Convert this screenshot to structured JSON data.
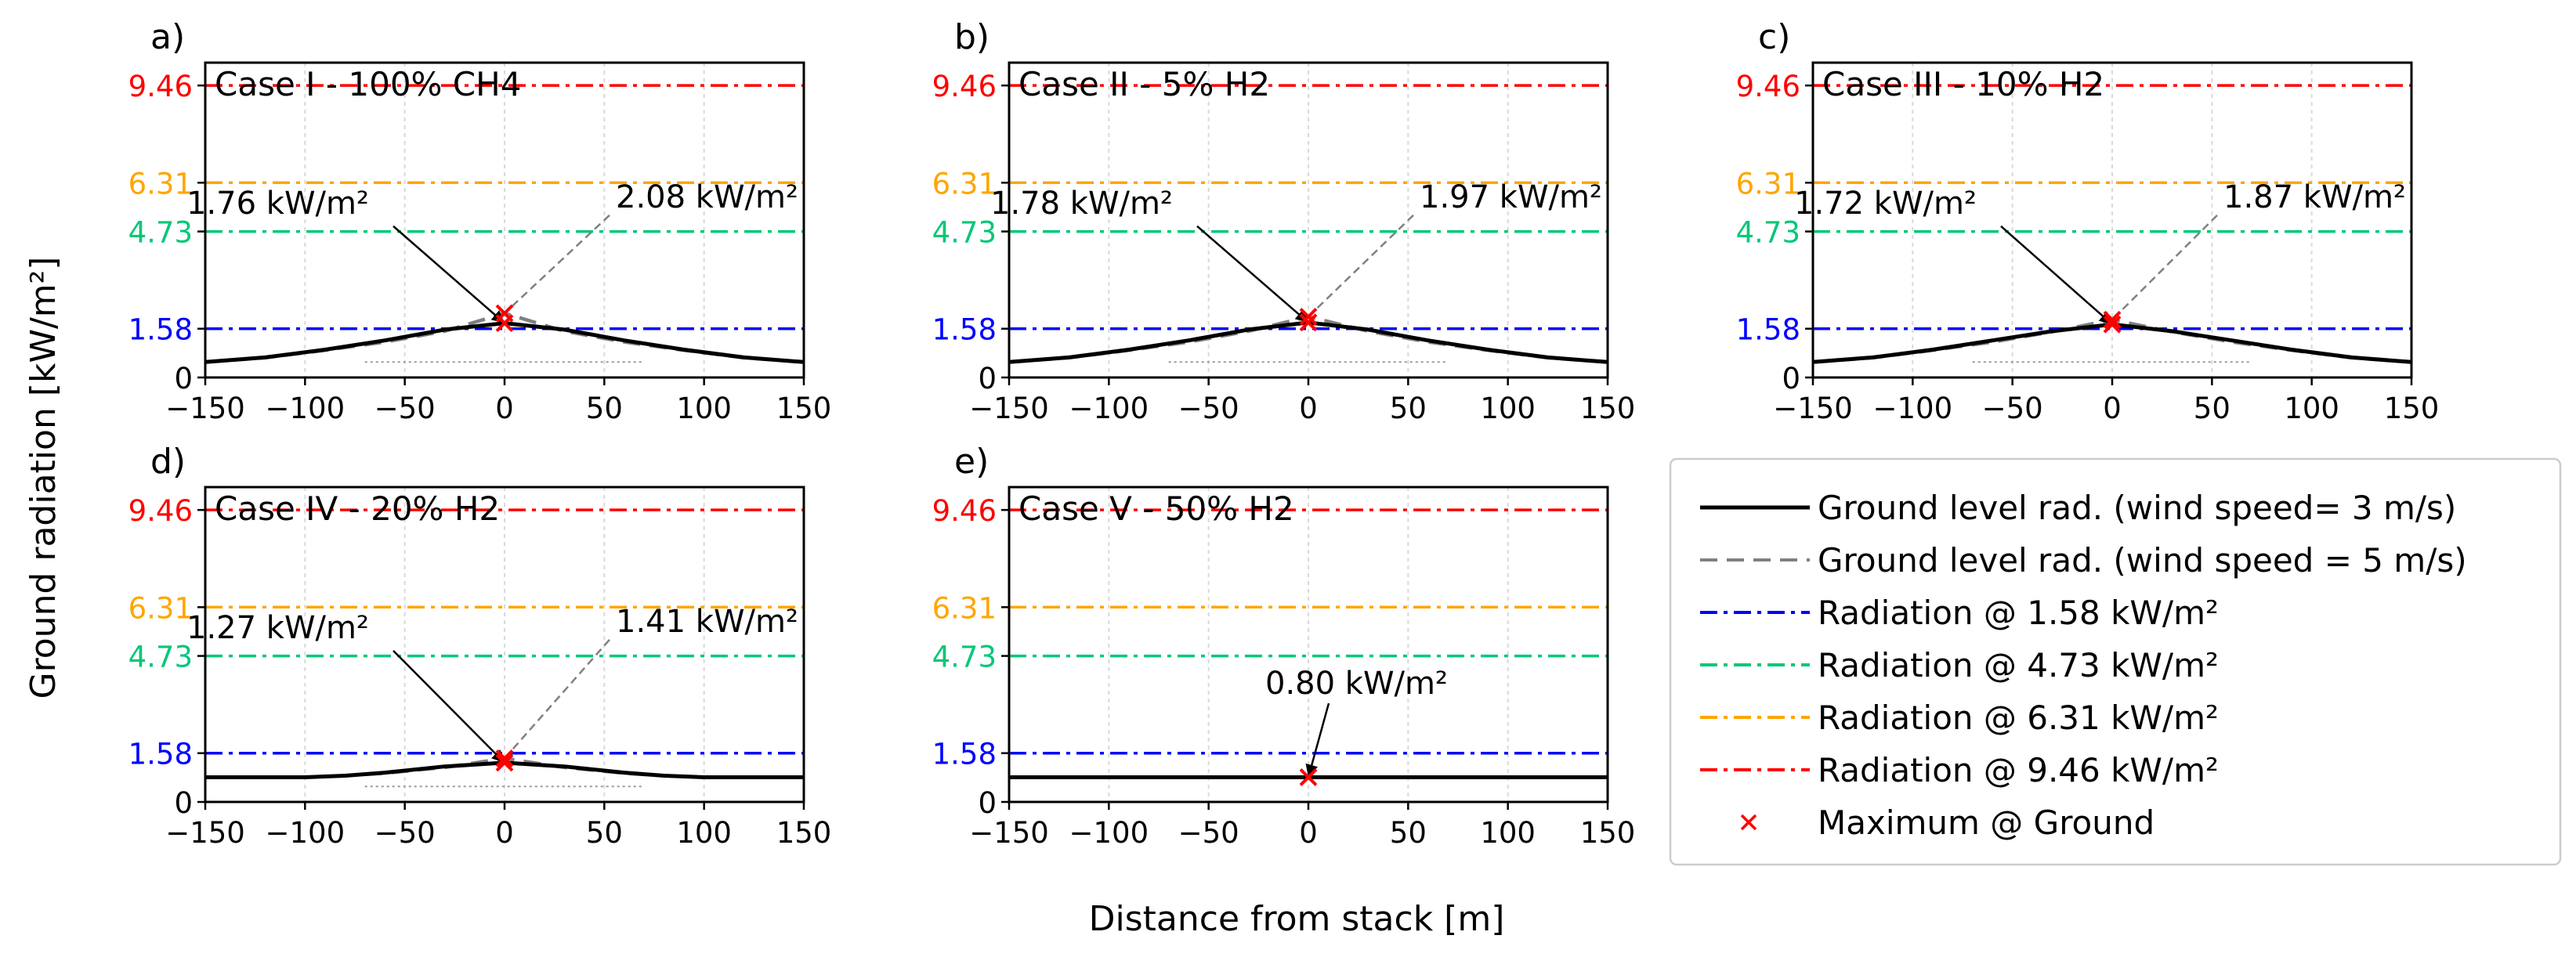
{
  "figure": {
    "ylabel": "Ground radiation [kW/m²]",
    "xlabel": "Distance from stack [m]"
  },
  "colors": {
    "r158": "#0000ff",
    "r473": "#00c878",
    "r631": "#ffa500",
    "r946": "#ff0000",
    "wind3": "#000000",
    "wind5": "#808080",
    "marker": "#ff0000",
    "grid": "#d9d9d9"
  },
  "legend": {
    "items": [
      {
        "label": "Ground level rad. (wind speed= 3 m/s)",
        "style": "solid",
        "color": "#000000"
      },
      {
        "label": "Ground level rad. (wind speed = 5 m/s)",
        "style": "dashed",
        "color": "#808080"
      },
      {
        "label": "Radiation @ 1.58 kW/m²",
        "style": "dashdot",
        "color": "#0000ff"
      },
      {
        "label": "Radiation @ 4.73 kW/m²",
        "style": "dashdot",
        "color": "#00c878"
      },
      {
        "label": "Radiation @ 6.31 kW/m²",
        "style": "dashdot",
        "color": "#ffa500"
      },
      {
        "label": "Radiation @ 9.46 kW/m²",
        "style": "dashdot",
        "color": "#ff0000"
      },
      {
        "label": "Maximum @ Ground",
        "style": "marker",
        "color": "#ff0000"
      }
    ]
  },
  "chart_data": [
    {
      "type": "line",
      "panel_label": "a)",
      "title": "Case I  - 100% CH4",
      "xlim": [
        -150,
        150
      ],
      "ylim": [
        0,
        10.2
      ],
      "xticks": [
        "−150",
        "−100",
        "−50",
        "0",
        "50",
        "100",
        "150"
      ],
      "thresholds": [
        {
          "value": 0,
          "label": "0",
          "color": "#000000",
          "line": false
        },
        {
          "value": 1.58,
          "label": "1.58",
          "color": "#0000ff",
          "line": true
        },
        {
          "value": 4.73,
          "label": "4.73",
          "color": "#00c878",
          "line": true
        },
        {
          "value": 6.31,
          "label": "6.31",
          "color": "#ffa500",
          "line": true
        },
        {
          "value": 9.46,
          "label": "9.46",
          "color": "#ff0000",
          "line": true
        }
      ],
      "series": [
        {
          "style": "solid",
          "color": "#000000",
          "x": [
            -150,
            -120,
            -90,
            -60,
            -30,
            0,
            30,
            60,
            90,
            120,
            150
          ],
          "y": [
            0.5,
            0.65,
            0.9,
            1.2,
            1.55,
            1.76,
            1.55,
            1.2,
            0.9,
            0.65,
            0.5
          ]
        },
        {
          "style": "dashed",
          "color": "#808080",
          "x": [
            -150,
            -120,
            -90,
            -60,
            -30,
            0,
            30,
            60,
            90,
            120,
            150
          ],
          "y": [
            0.5,
            0.64,
            0.88,
            1.15,
            1.5,
            2.08,
            1.5,
            1.15,
            0.88,
            0.64,
            0.5
          ]
        }
      ],
      "baseline": 0.5,
      "maxima": [
        {
          "x": 0,
          "y": 1.76
        },
        {
          "x": 0,
          "y": 2.08
        }
      ],
      "annotations": [
        {
          "text": "1.76 kW/m²",
          "side": "left"
        },
        {
          "text": "2.08 kW/m²",
          "side": "right"
        }
      ]
    },
    {
      "type": "line",
      "panel_label": "b)",
      "title": "Case II - 5% H2",
      "xlim": [
        -150,
        150
      ],
      "ylim": [
        0,
        10.2
      ],
      "xticks": [
        "−150",
        "−100",
        "−50",
        "0",
        "50",
        "100",
        "150"
      ],
      "thresholds": [
        {
          "value": 0,
          "label": "0",
          "color": "#000000",
          "line": false
        },
        {
          "value": 1.58,
          "label": "1.58",
          "color": "#0000ff",
          "line": true
        },
        {
          "value": 4.73,
          "label": "4.73",
          "color": "#00c878",
          "line": true
        },
        {
          "value": 6.31,
          "label": "6.31",
          "color": "#ffa500",
          "line": true
        },
        {
          "value": 9.46,
          "label": "9.46",
          "color": "#ff0000",
          "line": true
        }
      ],
      "series": [
        {
          "style": "solid",
          "color": "#000000",
          "x": [
            -150,
            -120,
            -90,
            -60,
            -30,
            0,
            30,
            60,
            90,
            120,
            150
          ],
          "y": [
            0.5,
            0.65,
            0.9,
            1.2,
            1.55,
            1.78,
            1.55,
            1.2,
            0.9,
            0.65,
            0.5
          ]
        },
        {
          "style": "dashed",
          "color": "#808080",
          "x": [
            -150,
            -120,
            -90,
            -60,
            -30,
            0,
            30,
            60,
            90,
            120,
            150
          ],
          "y": [
            0.5,
            0.64,
            0.88,
            1.15,
            1.5,
            1.97,
            1.5,
            1.15,
            0.88,
            0.64,
            0.5
          ]
        }
      ],
      "baseline": 0.5,
      "maxima": [
        {
          "x": 0,
          "y": 1.78
        },
        {
          "x": 0,
          "y": 1.97
        }
      ],
      "annotations": [
        {
          "text": "1.78 kW/m²",
          "side": "left"
        },
        {
          "text": "1.97 kW/m²",
          "side": "right"
        }
      ]
    },
    {
      "type": "line",
      "panel_label": "c)",
      "title": "Case III - 10% H2",
      "xlim": [
        -150,
        150
      ],
      "ylim": [
        0,
        10.2
      ],
      "xticks": [
        "−150",
        "−100",
        "−50",
        "0",
        "50",
        "100",
        "150"
      ],
      "thresholds": [
        {
          "value": 0,
          "label": "0",
          "color": "#000000",
          "line": false
        },
        {
          "value": 1.58,
          "label": "1.58",
          "color": "#0000ff",
          "line": true
        },
        {
          "value": 4.73,
          "label": "4.73",
          "color": "#00c878",
          "line": true
        },
        {
          "value": 6.31,
          "label": "6.31",
          "color": "#ffa500",
          "line": true
        },
        {
          "value": 9.46,
          "label": "9.46",
          "color": "#ff0000",
          "line": true
        }
      ],
      "series": [
        {
          "style": "solid",
          "color": "#000000",
          "x": [
            -150,
            -120,
            -90,
            -60,
            -30,
            0,
            30,
            60,
            90,
            120,
            150
          ],
          "y": [
            0.5,
            0.65,
            0.9,
            1.2,
            1.5,
            1.72,
            1.5,
            1.2,
            0.9,
            0.65,
            0.5
          ]
        },
        {
          "style": "dashed",
          "color": "#808080",
          "x": [
            -150,
            -120,
            -90,
            -60,
            -30,
            0,
            30,
            60,
            90,
            120,
            150
          ],
          "y": [
            0.5,
            0.64,
            0.88,
            1.15,
            1.48,
            1.87,
            1.48,
            1.15,
            0.88,
            0.64,
            0.5
          ]
        }
      ],
      "baseline": 0.5,
      "maxima": [
        {
          "x": 0,
          "y": 1.72
        },
        {
          "x": 0,
          "y": 1.87
        }
      ],
      "annotations": [
        {
          "text": "1.72 kW/m²",
          "side": "left"
        },
        {
          "text": "1.87 kW/m²",
          "side": "right"
        }
      ]
    },
    {
      "type": "line",
      "panel_label": "d)",
      "title": "Case IV - 20% H2",
      "xlim": [
        -150,
        150
      ],
      "ylim": [
        0,
        10.2
      ],
      "xticks": [
        "−150",
        "−100",
        "−50",
        "0",
        "50",
        "100",
        "150"
      ],
      "thresholds": [
        {
          "value": 0,
          "label": "0",
          "color": "#000000",
          "line": false
        },
        {
          "value": 1.58,
          "label": "1.58",
          "color": "#0000ff",
          "line": true
        },
        {
          "value": 4.73,
          "label": "4.73",
          "color": "#00c878",
          "line": true
        },
        {
          "value": 6.31,
          "label": "6.31",
          "color": "#ffa500",
          "line": true
        },
        {
          "value": 9.46,
          "label": "9.46",
          "color": "#ff0000",
          "line": true
        }
      ],
      "series": [
        {
          "style": "solid",
          "color": "#000000",
          "x": [
            -150,
            -120,
            -100,
            -80,
            -60,
            -30,
            0,
            30,
            60,
            80,
            100,
            120,
            150
          ],
          "y": [
            0.8,
            0.8,
            0.8,
            0.85,
            0.95,
            1.15,
            1.27,
            1.15,
            0.95,
            0.85,
            0.8,
            0.8,
            0.8
          ]
        },
        {
          "style": "dashed",
          "color": "#808080",
          "x": [
            -150,
            -120,
            -100,
            -80,
            -60,
            -30,
            0,
            30,
            60,
            80,
            100,
            120,
            150
          ],
          "y": [
            0.8,
            0.8,
            0.8,
            0.85,
            0.93,
            1.12,
            1.41,
            1.12,
            0.93,
            0.85,
            0.8,
            0.8,
            0.8
          ]
        }
      ],
      "baseline": 0.5,
      "maxima": [
        {
          "x": 0,
          "y": 1.27
        },
        {
          "x": 0,
          "y": 1.41
        }
      ],
      "annotations": [
        {
          "text": "1.27 kW/m²",
          "side": "left"
        },
        {
          "text": "1.41 kW/m²",
          "side": "right"
        }
      ]
    },
    {
      "type": "line",
      "panel_label": "e)",
      "title": "Case V  - 50% H2",
      "xlim": [
        -150,
        150
      ],
      "ylim": [
        0,
        10.2
      ],
      "xticks": [
        "−150",
        "−100",
        "−50",
        "0",
        "50",
        "100",
        "150"
      ],
      "thresholds": [
        {
          "value": 0,
          "label": "0",
          "color": "#000000",
          "line": false
        },
        {
          "value": 1.58,
          "label": "1.58",
          "color": "#0000ff",
          "line": true
        },
        {
          "value": 4.73,
          "label": "4.73",
          "color": "#00c878",
          "line": true
        },
        {
          "value": 6.31,
          "label": "6.31",
          "color": "#ffa500",
          "line": true
        },
        {
          "value": 9.46,
          "label": "9.46",
          "color": "#ff0000",
          "line": true
        }
      ],
      "series": [
        {
          "style": "solid",
          "color": "#000000",
          "x": [
            -150,
            150
          ],
          "y": [
            0.8,
            0.8
          ]
        }
      ],
      "baseline": null,
      "maxima": [
        {
          "x": 0,
          "y": 0.8
        }
      ],
      "annotations": [
        {
          "text": "0.80 kW/m²",
          "side": "center"
        }
      ]
    }
  ]
}
